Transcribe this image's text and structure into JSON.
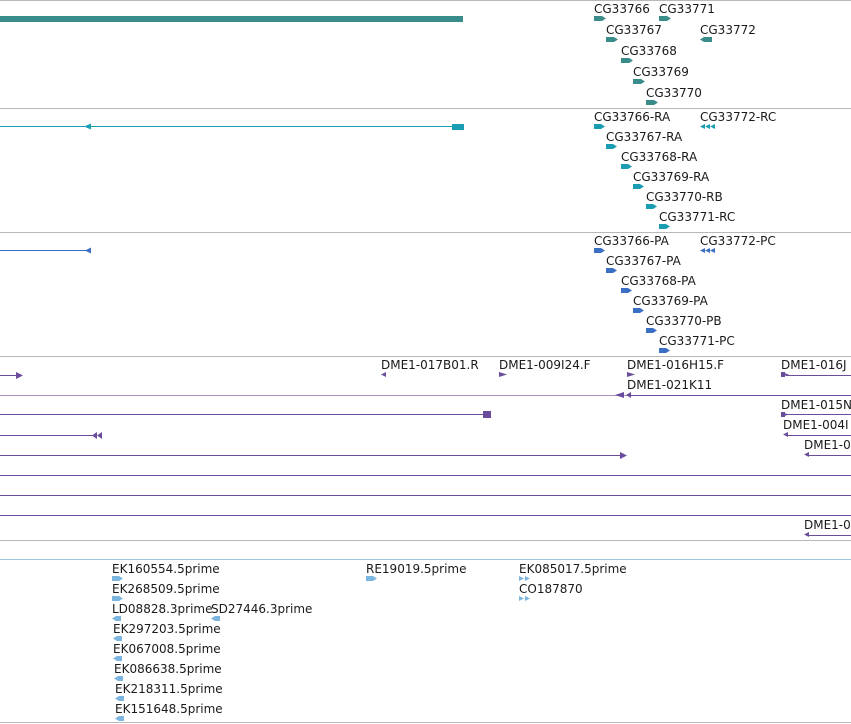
{
  "colors": {
    "divider": "#b8b8b8",
    "gene": "#3a8c8a",
    "mrna": "#1a9db3",
    "protein": "#3a6fc4",
    "bac": "#6a4c9c",
    "est": "#7cb6e0"
  },
  "tracks": [
    {
      "name": "genes",
      "color": "#3a8c8a",
      "features": [
        {
          "label": "CG33766",
          "strand": "+"
        },
        {
          "label": "CG33767",
          "strand": "+"
        },
        {
          "label": "CG33768",
          "strand": "+"
        },
        {
          "label": "CG33769",
          "strand": "+"
        },
        {
          "label": "CG33770",
          "strand": "+"
        },
        {
          "label": "CG33771",
          "strand": "+"
        },
        {
          "label": "CG33772",
          "strand": "-"
        }
      ]
    },
    {
      "name": "transcripts",
      "color": "#1a9db3",
      "features": [
        {
          "label": "CG33766-RA",
          "strand": "+"
        },
        {
          "label": "CG33767-RA",
          "strand": "+"
        },
        {
          "label": "CG33768-RA",
          "strand": "+"
        },
        {
          "label": "CG33769-RA",
          "strand": "+"
        },
        {
          "label": "CG33770-RB",
          "strand": "+"
        },
        {
          "label": "CG33771-RC",
          "strand": "+"
        },
        {
          "label": "CG33772-RC",
          "strand": "-"
        }
      ]
    },
    {
      "name": "proteins",
      "color": "#3a6fc4",
      "features": [
        {
          "label": "CG33766-PA",
          "strand": "+"
        },
        {
          "label": "CG33767-PA",
          "strand": "+"
        },
        {
          "label": "CG33768-PA",
          "strand": "+"
        },
        {
          "label": "CG33769-PA",
          "strand": "+"
        },
        {
          "label": "CG33770-PB",
          "strand": "+"
        },
        {
          "label": "CG33771-PC",
          "strand": "+"
        },
        {
          "label": "CG33772-PC",
          "strand": "-"
        }
      ]
    },
    {
      "name": "bac-ends",
      "color": "#6a4c9c",
      "features": [
        {
          "label": "DME1-017B01.R",
          "strand": "-"
        },
        {
          "label": "DME1-009I24.F",
          "strand": "+"
        },
        {
          "label": "DME1-016H15.F",
          "strand": "+"
        },
        {
          "label": "DME1-016J",
          "strand": "+"
        },
        {
          "label": "DME1-021K11",
          "strand": "-"
        },
        {
          "label": "DME1-015N",
          "strand": "+"
        },
        {
          "label": "DME1-004I",
          "strand": "-"
        },
        {
          "label": "DME1-0",
          "strand": "-"
        },
        {
          "label": "DME1-0",
          "strand": "-"
        }
      ]
    },
    {
      "name": "ests",
      "color": "#7cb6e0",
      "features": [
        {
          "label": "EK160554.5prime",
          "strand": "+"
        },
        {
          "label": "EK268509.5prime",
          "strand": "+"
        },
        {
          "label": "LD08828.3prime",
          "strand": "-"
        },
        {
          "label": "SD27446.3prime",
          "strand": "-"
        },
        {
          "label": "EK297203.5prime",
          "strand": "-"
        },
        {
          "label": "EK067008.5prime",
          "strand": "-"
        },
        {
          "label": "EK086638.5prime",
          "strand": "-"
        },
        {
          "label": "EK218311.5prime",
          "strand": "-"
        },
        {
          "label": "EK151648.5prime",
          "strand": "-"
        },
        {
          "label": "RE19019.5prime",
          "strand": "+"
        },
        {
          "label": "EK085017.5prime",
          "strand": "+"
        },
        {
          "label": "CO187870",
          "strand": "+"
        }
      ]
    }
  ]
}
